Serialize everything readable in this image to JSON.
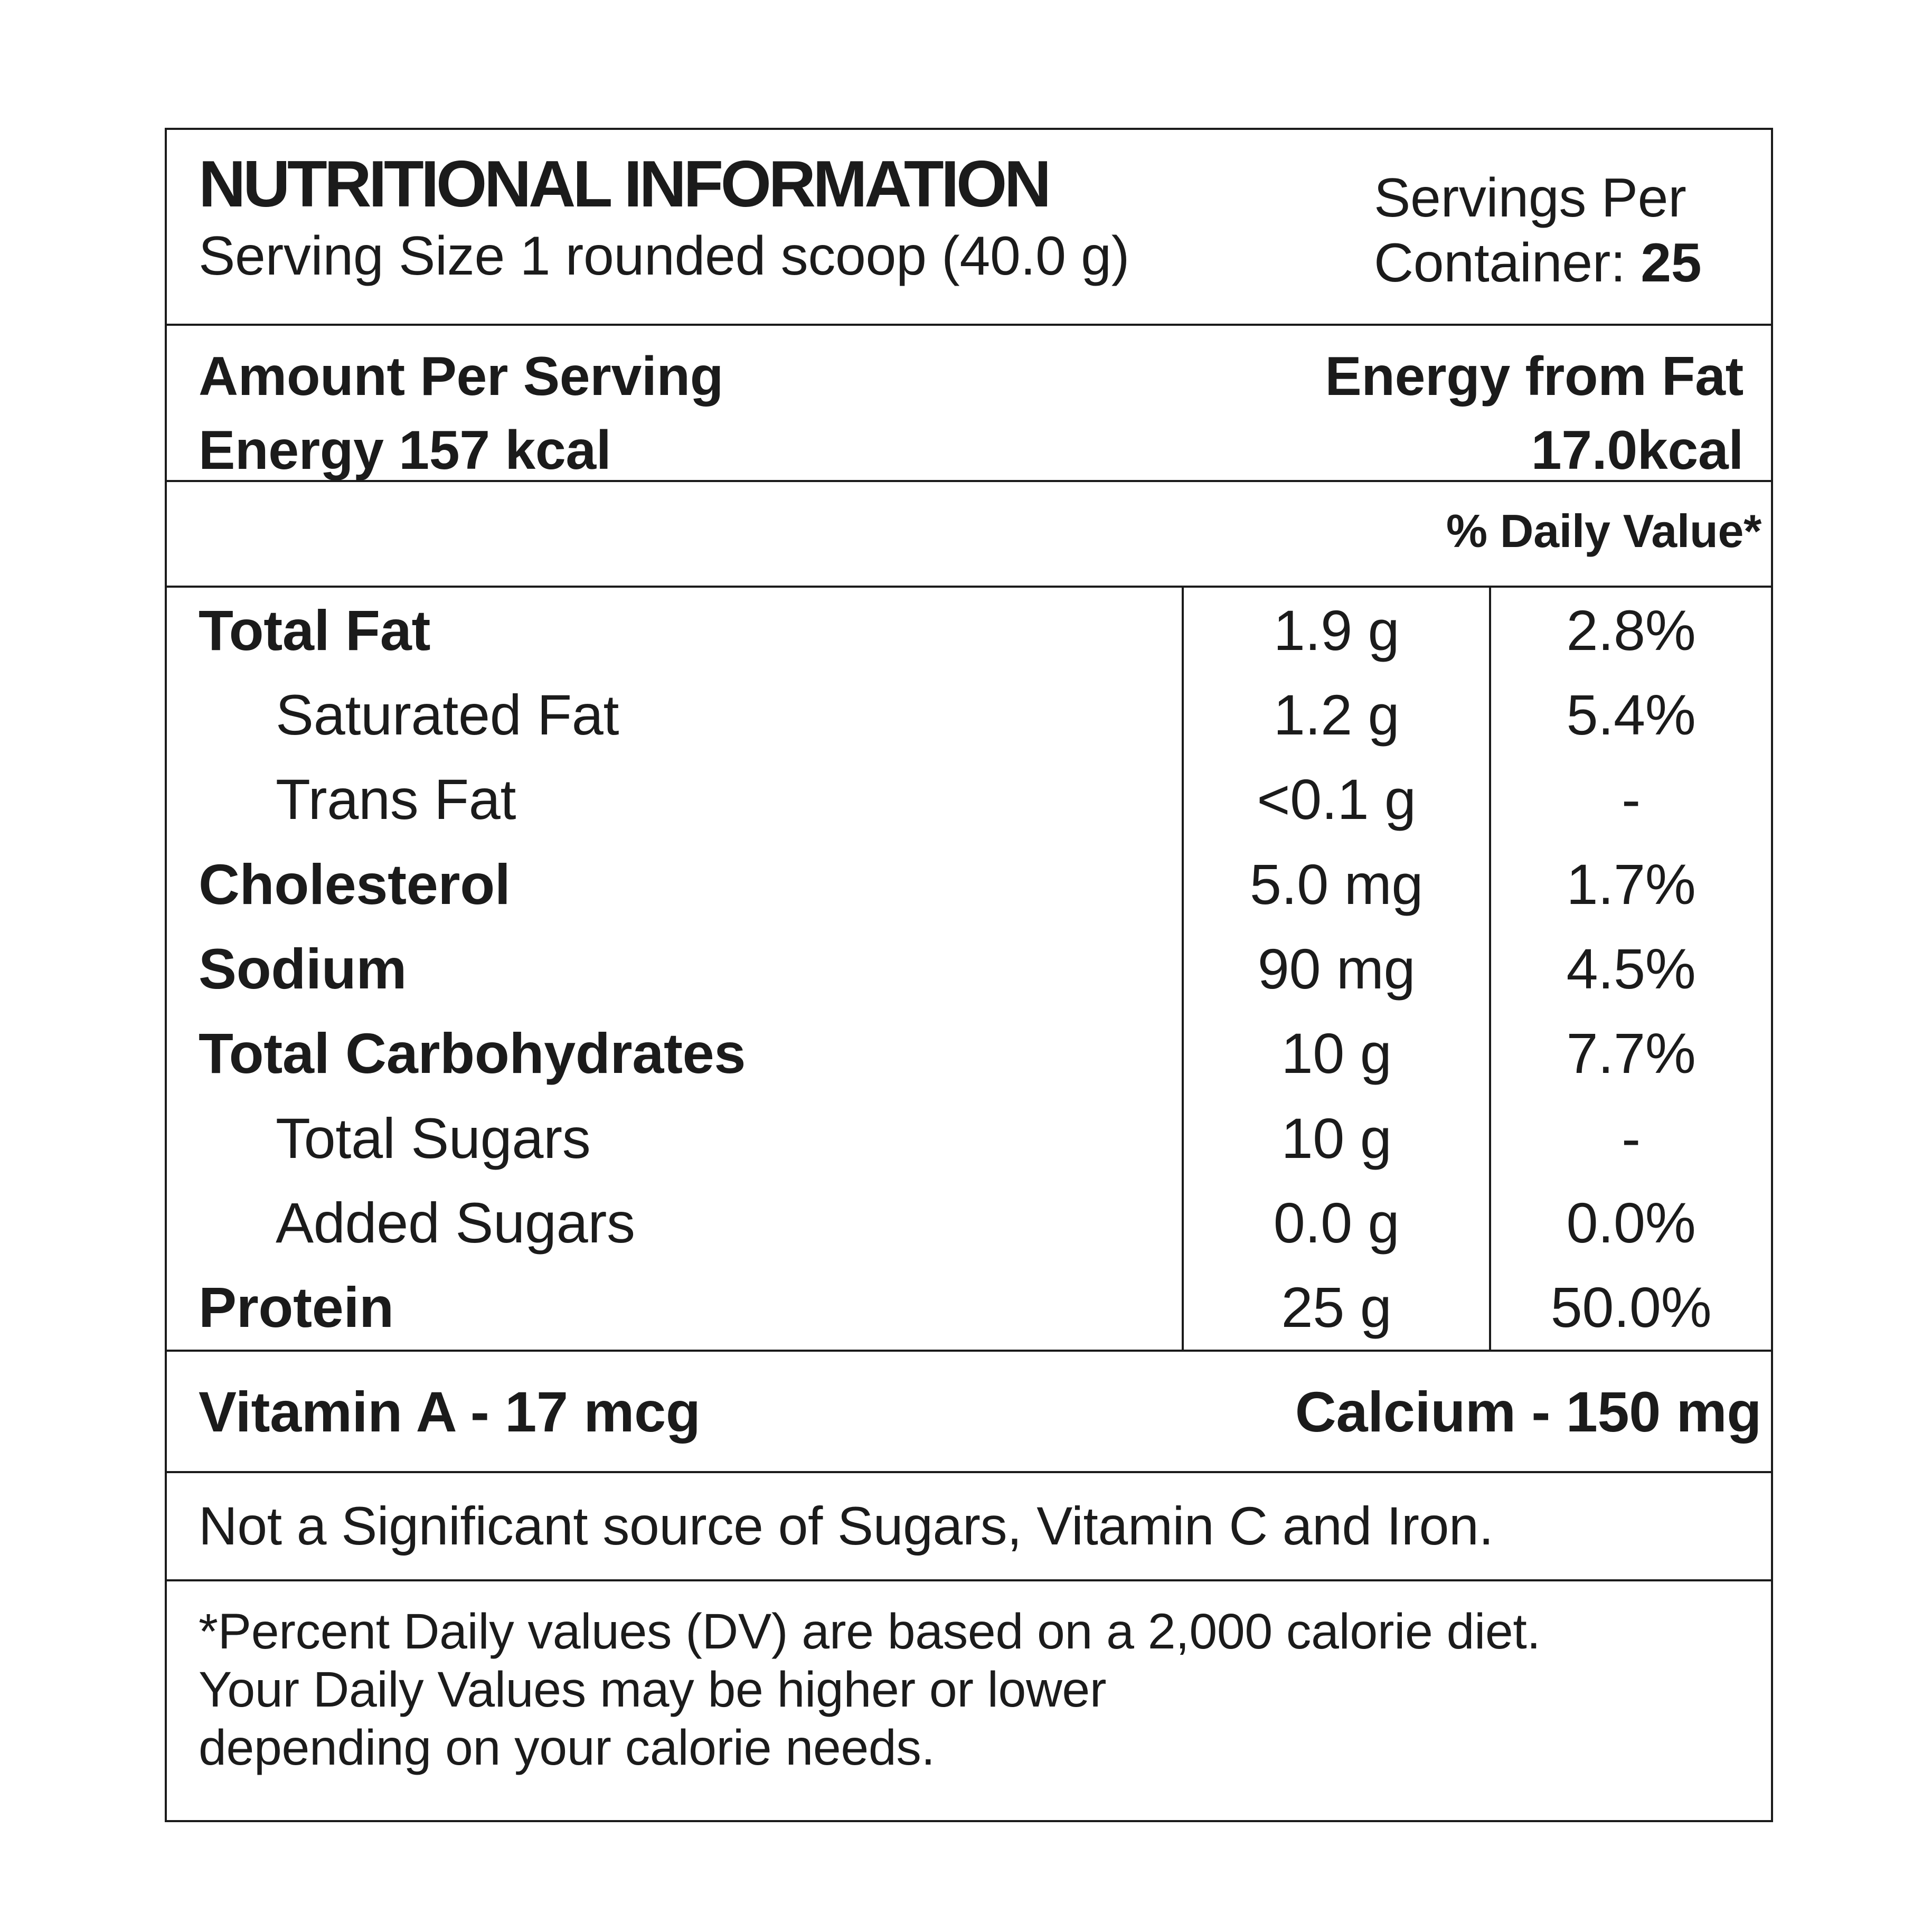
{
  "colors": {
    "text": "#1b1b1b",
    "background": "#ffffff",
    "rule": "#1b1b1b"
  },
  "header": {
    "title": "NUTRITIONAL INFORMATION",
    "serving_size": "Serving Size 1 rounded scoop (40.0 g)",
    "servings_line1": "Servings Per",
    "servings_line2": "Container: ",
    "servings_value": "25"
  },
  "energy": {
    "amount_per_serving": "Amount Per Serving",
    "energy": "Energy 157 kcal",
    "energy_from_fat_label": "Energy from Fat",
    "energy_from_fat_value": "17.0kcal"
  },
  "daily_value_header": "% Daily Value*",
  "table": {
    "rows": [
      {
        "name": "Total Fat",
        "amount": "1.9 g",
        "dv": "2.8%"
      },
      {
        "name": "Saturated Fat",
        "amount": "1.2 g",
        "dv": "5.4%"
      },
      {
        "name": "Trans Fat",
        "amount": "<0.1 g",
        "dv": "-"
      },
      {
        "name": "Cholesterol",
        "amount": "5.0 mg",
        "dv": "1.7%"
      },
      {
        "name": "Sodium",
        "amount": "90 mg",
        "dv": "4.5%"
      },
      {
        "name": "Total Carbohydrates",
        "amount": "10 g",
        "dv": "7.7%"
      },
      {
        "name": "Total Sugars",
        "amount": "10 g",
        "dv": "-"
      },
      {
        "name": "Added Sugars",
        "amount": "0.0 g",
        "dv": "0.0%"
      },
      {
        "name": "Protein",
        "amount": "25 g",
        "dv": "50.0%"
      }
    ]
  },
  "micronutrients": {
    "vitamin_a": "Vitamin A - 17 mcg",
    "calcium": "Calcium - 150 mg"
  },
  "disclaimer": "Not a Significant source of Sugars, Vitamin C and Iron.",
  "footnote": {
    "line1": "*Percent Daily values (DV) are based on a 2,000 calorie diet.",
    "line2": "Your Daily Values may be higher or lower",
    "line3": "depending on your calorie needs."
  }
}
